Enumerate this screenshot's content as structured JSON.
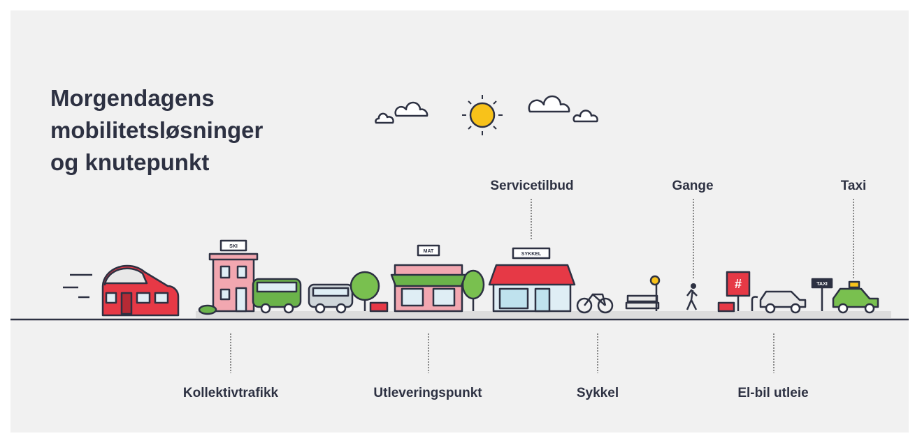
{
  "title": {
    "lines": [
      "Morgendagens",
      "mobilitetsløsninger",
      "og knutepunkt"
    ]
  },
  "top_labels": [
    "Servicetilbud",
    "Gange",
    "Taxi"
  ],
  "bottom_labels": [
    "Kollektivtrafikk",
    "Utleveringspunkt",
    "Sykkel",
    "El-bil utleie"
  ],
  "signs": [
    "SKI",
    "MAT",
    "SYKKEL",
    "TAXI"
  ]
}
